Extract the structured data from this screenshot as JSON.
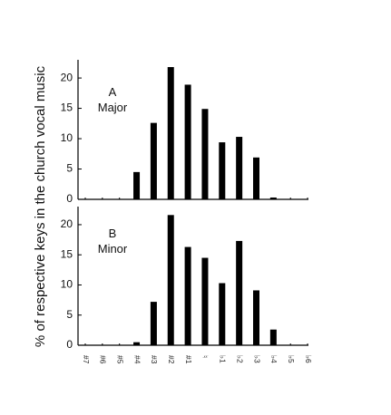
{
  "chart_data": [
    {
      "type": "bar",
      "panel_label": "A",
      "panel_sublabel": "Major",
      "categories": [
        "#7",
        "#6",
        "#5",
        "#4",
        "#3",
        "#2",
        "#1",
        "♮",
        "♭1",
        "♭2",
        "♭3",
        "♭4",
        "♭5",
        "♭6"
      ],
      "values": [
        0,
        0,
        0,
        4.5,
        12.6,
        21.8,
        18.9,
        14.9,
        9.4,
        10.3,
        6.9,
        0.3,
        0,
        0
      ],
      "ylim": [
        0,
        23
      ],
      "yticks": [
        "0",
        "5",
        "10",
        "15",
        "20"
      ],
      "ylabel": "% of respective keys in the church vocal music",
      "xlabel": "",
      "grid": false
    },
    {
      "type": "bar",
      "panel_label": "B",
      "panel_sublabel": "Minor",
      "categories": [
        "#7",
        "#6",
        "#5",
        "#4",
        "#3",
        "#2",
        "#1",
        "♮",
        "♭1",
        "♭2",
        "♭3",
        "♭4",
        "♭5",
        "♭6"
      ],
      "values": [
        0,
        0,
        0,
        0.5,
        7.2,
        21.6,
        16.3,
        14.5,
        10.3,
        17.3,
        9.1,
        2.6,
        0,
        0
      ],
      "ylim": [
        0,
        23
      ],
      "yticks": [
        "0",
        "5",
        "10",
        "15",
        "20"
      ],
      "ylabel": "% of respective keys in the church vocal music",
      "xlabel": "",
      "grid": false
    }
  ]
}
